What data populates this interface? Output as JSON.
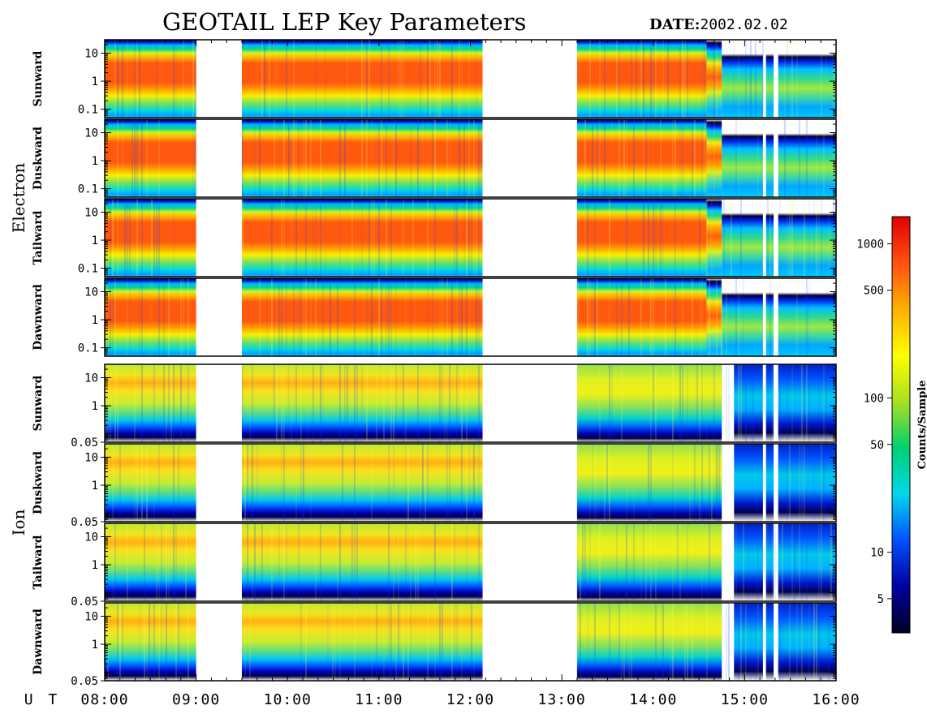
{
  "header": {
    "title": "GEOTAIL LEP Key Parameters",
    "date_label": "DATE:",
    "date_value": "2002.02.02"
  },
  "chart_data": {
    "type": "heatmap",
    "x_axis": {
      "label": "U T",
      "range": [
        "08:00",
        "16:00"
      ],
      "ticks": [
        "08:00",
        "09:00",
        "10:00",
        "11:00",
        "12:00",
        "13:00",
        "14:00",
        "15:00",
        "16:00"
      ]
    },
    "groups": [
      {
        "name": "Electron",
        "y_scale": "log",
        "y_ticks": [
          "10",
          "1",
          "0.1"
        ],
        "y_tick_values": [
          10,
          1,
          0.1
        ],
        "y_range": [
          0.05,
          30
        ],
        "panels": [
          "Sunward",
          "Duskward",
          "Tailward",
          "Dawnward"
        ]
      },
      {
        "name": "Ion",
        "y_scale": "log",
        "y_ticks": [
          "10",
          "1",
          "0.05"
        ],
        "y_tick_values": [
          10,
          1,
          0.05
        ],
        "y_range": [
          0.05,
          30
        ],
        "panels": [
          "Sunward",
          "Duskward",
          "Tailward",
          "Dawnward"
        ]
      }
    ],
    "data_gaps_ut": [
      [
        "09:00",
        "09:30"
      ],
      [
        "12:08",
        "13:10"
      ]
    ],
    "colorbar": {
      "label": "Counts/Sample",
      "scale": "log",
      "range": [
        3,
        1500
      ],
      "ticks": [
        "1000",
        "500",
        "100",
        "50",
        "10",
        "5"
      ],
      "tick_values": [
        1000,
        500,
        100,
        50,
        10,
        5
      ],
      "colormap": [
        "#000022",
        "#0000a0",
        "#0050ff",
        "#00d8e8",
        "#00d070",
        "#a8e020",
        "#ffff00",
        "#ffb000",
        "#ff5010",
        "#e00000"
      ]
    }
  }
}
